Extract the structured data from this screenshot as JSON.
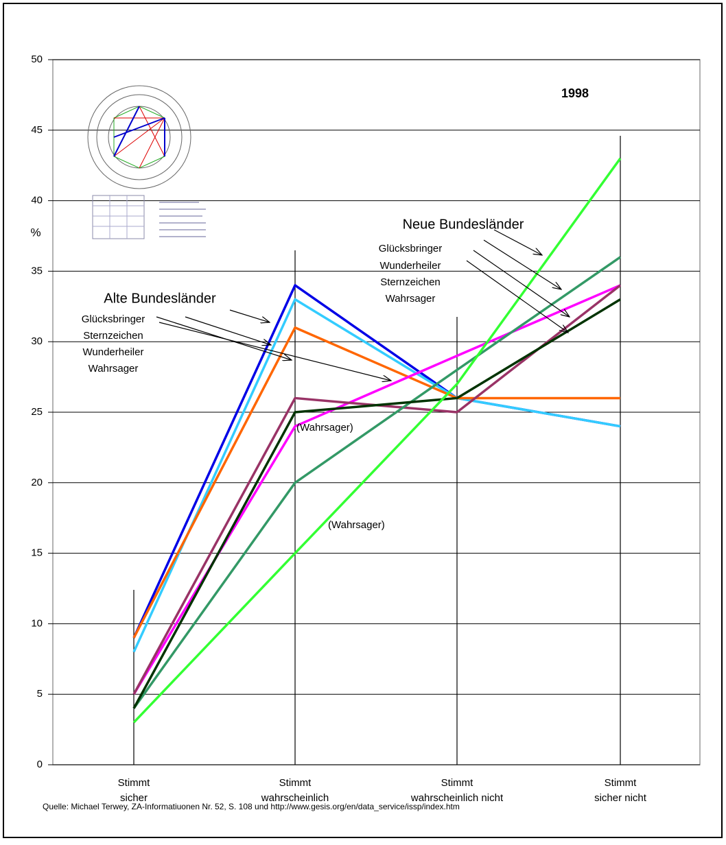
{
  "chart_data": {
    "type": "line",
    "categories": [
      "Stimmt sicher",
      "Stimmt wahrscheinlich",
      "Stimmt wahrscheinlich nicht",
      "Stimmt sicher nicht"
    ],
    "series": [
      {
        "color": "#0000e6",
        "values": [
          9,
          34,
          26,
          24
        ]
      },
      {
        "color": "#33ccff",
        "values": [
          8,
          33,
          26,
          24
        ]
      },
      {
        "color": "#ff6600",
        "values": [
          9,
          31,
          26,
          26
        ]
      },
      {
        "color": "#ff00ff",
        "values": [
          5,
          24,
          29,
          34
        ]
      },
      {
        "color": "#993366",
        "values": [
          5,
          26,
          25,
          34
        ]
      },
      {
        "color": "#339966",
        "values": [
          4,
          20,
          28,
          36
        ]
      },
      {
        "color": "#003300",
        "values": [
          4,
          25,
          26,
          33
        ]
      },
      {
        "color": "#33ff33",
        "values": [
          3,
          15,
          27,
          43
        ]
      }
    ],
    "ylim": [
      0,
      50
    ],
    "yticks": [
      0,
      5,
      10,
      15,
      20,
      25,
      30,
      35,
      40,
      45,
      50
    ],
    "grid": true,
    "annotations": [
      "1998",
      "%",
      "Neue Bundesländer",
      "Glücksbringer",
      "Wunderheiler",
      "Sternzeichen",
      "Wahrsager",
      "Alte Bundesländer",
      "Glücksbringer",
      "Sternzeichen",
      "Wunderheiler",
      "Wahrsager",
      "(Wahrsager)",
      "(Wahrsager)"
    ],
    "source": "Quelle:  Michael Terwey, ZA-Informatiuonen Nr. 52, S. 108 und  http://www.gesis.org/en/data_service/issp/index.htm"
  }
}
